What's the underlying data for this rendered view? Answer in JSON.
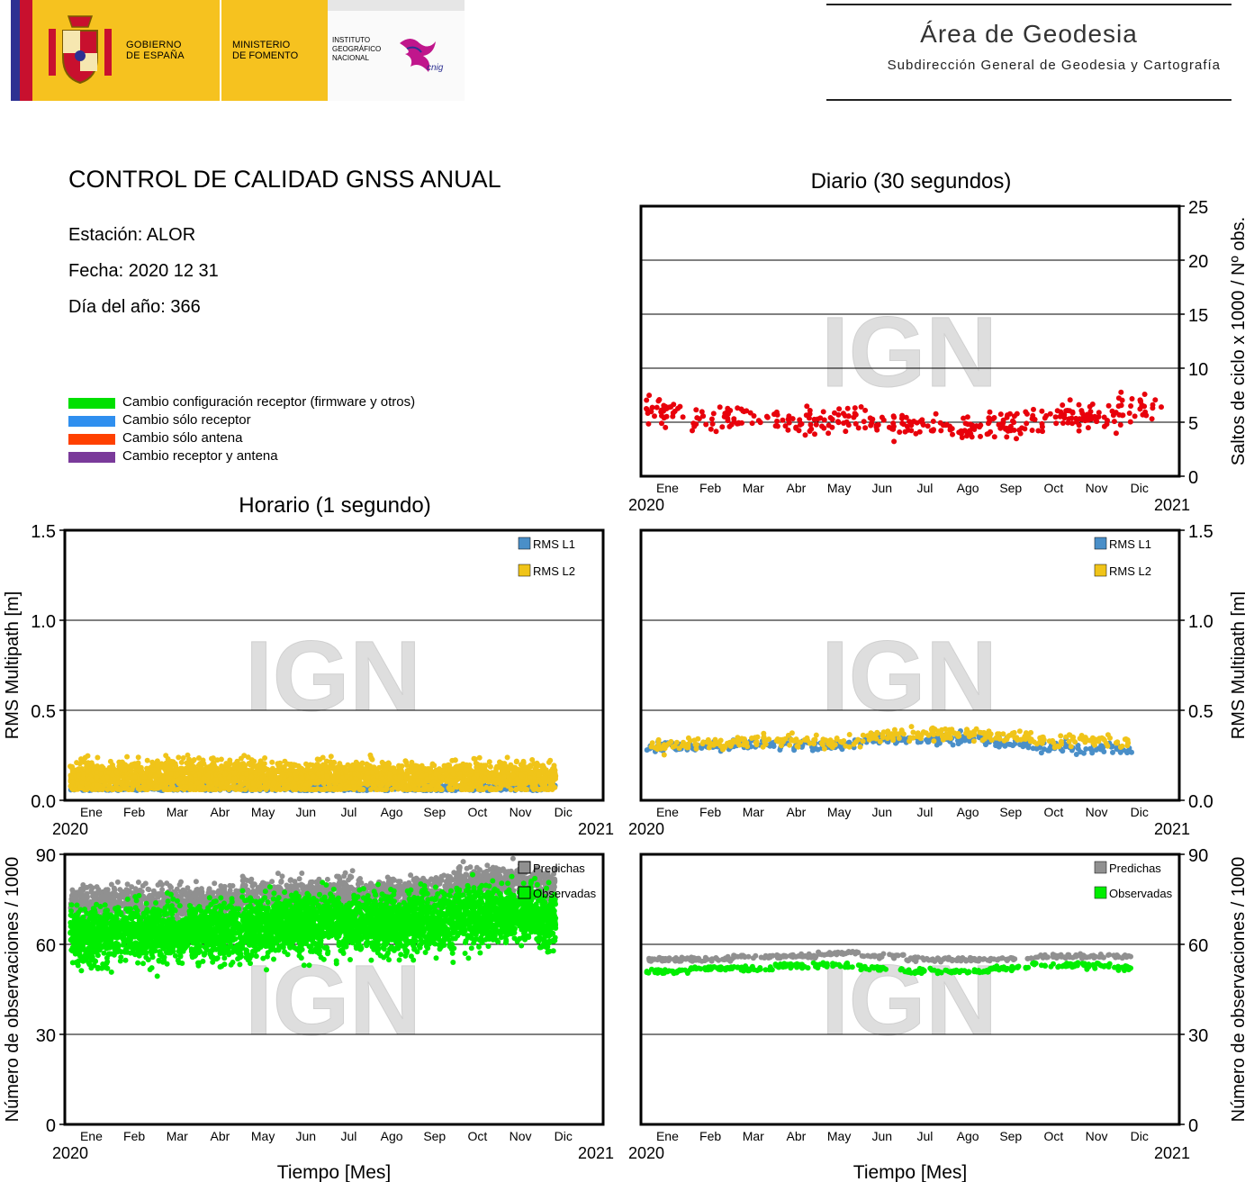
{
  "header": {
    "gobierno": [
      "GOBIERNO",
      "DE ESPAÑA"
    ],
    "ministerio": [
      "MINISTERIO",
      "DE FOMENTO"
    ],
    "instituto": [
      "INSTITUTO",
      "GEOGRÁFICO",
      "NACIONAL"
    ],
    "cnig_mark": "cnig",
    "area_title": "Área de Geodesia",
    "area_subtitle": "Subdirección General de Geodesia y Cartografía",
    "shield_icon": "coat-of-arms-icon",
    "colors": {
      "gold": "#f6c21f",
      "blue": "#2e3192",
      "red": "#c8102e"
    }
  },
  "report": {
    "title": "CONTROL DE CALIDAD GNSS ANUAL",
    "station": "Estación: ALOR",
    "date": "Fecha: 2020 12 31",
    "doy": "Día del año: 366"
  },
  "change_legend": [
    {
      "label": "Cambio configuración receptor (firmware y otros)",
      "color": "#00e000"
    },
    {
      "label": "Cambio sólo receptor",
      "color": "#2f8fef"
    },
    {
      "label": "Cambio sólo antena",
      "color": "#ff4000"
    },
    {
      "label": "Cambio receptor y antena",
      "color": "#7a3a9a"
    }
  ],
  "sections": {
    "daily": "Diario (30 segundos)",
    "hourly": "Horario (1 segundo)"
  },
  "watermark": "IGN",
  "chart_data": [
    {
      "id": "daily-cycle-slips",
      "type": "scatter",
      "ylabel": "Saltos de ciclo x 1000 / Nº obs.",
      "ylim": [
        0,
        25
      ],
      "yticks": [
        0,
        5,
        10,
        15,
        20,
        25
      ],
      "grid": true,
      "x_start": "2020",
      "x_end": "2021",
      "months": [
        "Ene",
        "Feb",
        "Mar",
        "Abr",
        "May",
        "Jun",
        "Jul",
        "Ago",
        "Sep",
        "Oct",
        "Nov",
        "Dic"
      ],
      "series": [
        {
          "color": "#e8000b",
          "monthly_mean": [
            6.1,
            5.3,
            5.5,
            5.0,
            5.4,
            4.8,
            4.7,
            4.3,
            4.7,
            5.6,
            5.3,
            6.2
          ]
        }
      ]
    },
    {
      "id": "hourly-multipath",
      "type": "scatter",
      "ylabel": "RMS Multipath [m]",
      "ylim": [
        0,
        1.5
      ],
      "yticks": [
        "0.0",
        "0.5",
        "1.0",
        "1.5"
      ],
      "grid": true,
      "x_start": "2020",
      "x_end": "2021",
      "months": [
        "Ene",
        "Feb",
        "Mar",
        "Abr",
        "May",
        "Jun",
        "Jul",
        "Ago",
        "Sep",
        "Oct",
        "Nov",
        "Dic"
      ],
      "legend_position": "top-right",
      "series": [
        {
          "name": "RMS L1",
          "color": "#4a8fc8",
          "monthly_mean": [
            0.07,
            0.07,
            0.07,
            0.07,
            0.07,
            0.07,
            0.07,
            0.07,
            0.07,
            0.07,
            0.07,
            0.07
          ]
        },
        {
          "name": "RMS L2",
          "color": "#f0c419",
          "monthly_mean": [
            0.13,
            0.13,
            0.13,
            0.13,
            0.13,
            0.13,
            0.13,
            0.13,
            0.13,
            0.13,
            0.13,
            0.13
          ]
        }
      ]
    },
    {
      "id": "daily-multipath",
      "type": "scatter",
      "ylabel": "RMS Multipath [m]",
      "ylim": [
        0,
        1.5
      ],
      "yticks": [
        "0.0",
        "0.5",
        "1.0",
        "1.5"
      ],
      "grid": true,
      "x_start": "2020",
      "x_end": "2021",
      "months": [
        "Ene",
        "Feb",
        "Mar",
        "Abr",
        "May",
        "Jun",
        "Jul",
        "Ago",
        "Sep",
        "Oct",
        "Nov",
        "Dic"
      ],
      "legend_position": "top-right",
      "series": [
        {
          "name": "RMS L1",
          "color": "#4a8fc8",
          "monthly_mean": [
            0.3,
            0.3,
            0.31,
            0.31,
            0.31,
            0.34,
            0.34,
            0.34,
            0.32,
            0.3,
            0.29,
            0.28
          ]
        },
        {
          "name": "RMS L2",
          "color": "#f0c419",
          "monthly_mean": [
            0.3,
            0.31,
            0.33,
            0.33,
            0.32,
            0.36,
            0.37,
            0.37,
            0.36,
            0.33,
            0.33,
            0.32
          ]
        }
      ]
    },
    {
      "id": "hourly-observations",
      "type": "scatter",
      "ylabel": "Número de observaciones / 1000",
      "xlabel": "Tiempo [Mes]",
      "ylim": [
        0,
        90
      ],
      "yticks": [
        0,
        30,
        60,
        90
      ],
      "grid": true,
      "x_start": "2020",
      "x_end": "2021",
      "months": [
        "Ene",
        "Feb",
        "Mar",
        "Abr",
        "May",
        "Jun",
        "Jul",
        "Ago",
        "Sep",
        "Oct",
        "Nov",
        "Dic"
      ],
      "legend_position": "top-right",
      "series": [
        {
          "name": "Predichas",
          "color": "#909090",
          "monthly_mean": [
            74,
            74,
            74,
            74,
            77,
            77,
            77,
            77,
            78,
            81,
            81,
            80
          ]
        },
        {
          "name": "Observadas",
          "color": "#00ee00",
          "monthly_mean": [
            63,
            64,
            64,
            64,
            66,
            67,
            67,
            67,
            68,
            70,
            70,
            68
          ]
        }
      ]
    },
    {
      "id": "daily-observations",
      "type": "scatter",
      "ylabel": "Número de observaciones / 1000",
      "xlabel": "Tiempo [Mes]",
      "ylim": [
        0,
        90
      ],
      "yticks": [
        0,
        30,
        60,
        90
      ],
      "grid": true,
      "x_start": "2020",
      "x_end": "2021",
      "months": [
        "Ene",
        "Feb",
        "Mar",
        "Abr",
        "May",
        "Jun",
        "Jul",
        "Ago",
        "Sep",
        "Oct",
        "Nov",
        "Dic"
      ],
      "legend_position": "top-right",
      "series": [
        {
          "name": "Predichas",
          "color": "#909090",
          "monthly_mean": [
            55,
            55,
            56,
            56,
            57,
            56,
            55,
            55,
            55,
            56,
            56,
            56
          ]
        },
        {
          "name": "Observadas",
          "color": "#00ee00",
          "monthly_mean": [
            51,
            52,
            52,
            53,
            53,
            52,
            51,
            51,
            52,
            53,
            53,
            52
          ]
        }
      ]
    }
  ]
}
